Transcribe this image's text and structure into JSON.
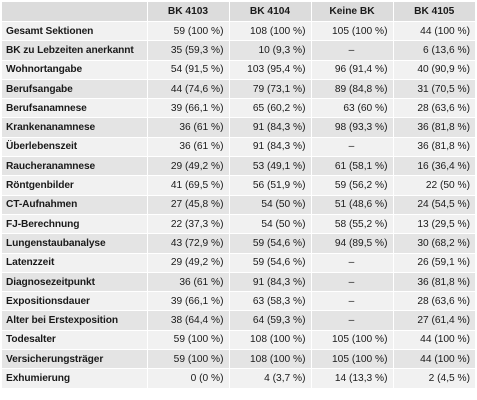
{
  "table": {
    "headers": [
      "",
      "BK 4103",
      "BK 4104",
      "Keine BK",
      "BK 4105"
    ],
    "rows": [
      {
        "label": "Gesamt Sektionen",
        "values": [
          "59 (100 %)",
          "108 (100 %)",
          "105 (100 %)",
          "44 (100 %)"
        ]
      },
      {
        "label": "BK zu Lebzeiten anerkannt",
        "values": [
          "35 (59,3 %)",
          "10 (9,3 %)",
          "–",
          "6 (13,6 %)"
        ]
      },
      {
        "label": "Wohnortangabe",
        "values": [
          "54 (91,5 %)",
          "103 (95,4 %)",
          "96 (91,4 %)",
          "40 (90,9 %)"
        ]
      },
      {
        "label": "Berufsangabe",
        "values": [
          "44 (74,6 %)",
          "79 (73,1 %)",
          "89 (84,8 %)",
          "31 (70,5 %)"
        ]
      },
      {
        "label": "Berufsanamnese",
        "values": [
          "39 (66,1 %)",
          "65 (60,2 %)",
          "63 (60 %)",
          "28 (63,6 %)"
        ]
      },
      {
        "label": "Krankenanamnese",
        "values": [
          "36 (61 %)",
          "91 (84,3 %)",
          "98 (93,3 %)",
          "36 (81,8 %)"
        ]
      },
      {
        "label": "Überlebenszeit",
        "values": [
          "36 (61 %)",
          "91 (84,3 %)",
          "–",
          "36 (81,8 %)"
        ]
      },
      {
        "label": "Raucheranamnese",
        "values": [
          "29 (49,2 %)",
          "53 (49,1 %)",
          "61 (58,1 %)",
          "16 (36,4 %)"
        ]
      },
      {
        "label": "Röntgenbilder",
        "values": [
          "41 (69,5 %)",
          "56 (51,9 %)",
          "59 (56,2 %)",
          "22 (50 %)"
        ]
      },
      {
        "label": "CT-Aufnahmen",
        "values": [
          "27 (45,8 %)",
          "54 (50 %)",
          "51 (48,6 %)",
          "24 (54,5 %)"
        ]
      },
      {
        "label": "FJ-Berechnung",
        "values": [
          "22 (37,3 %)",
          "54 (50 %)",
          "58 (55,2 %)",
          "13 (29,5 %)"
        ]
      },
      {
        "label": "Lungenstaubanalyse",
        "values": [
          "43 (72,9 %)",
          "59 (54,6 %)",
          "94 (89,5 %)",
          "30 (68,2 %)"
        ]
      },
      {
        "label": "Latenzzeit",
        "values": [
          "29 (49,2 %)",
          "59 (54,6 %)",
          "–",
          "26 (59,1 %)"
        ]
      },
      {
        "label": "Diagnosezeitpunkt",
        "values": [
          "36 (61 %)",
          "91 (84,3 %)",
          "–",
          "36 (81,8 %)"
        ]
      },
      {
        "label": "Expositionsdauer",
        "values": [
          "39 (66,1 %)",
          "63 (58,3 %)",
          "–",
          "28 (63,6 %)"
        ]
      },
      {
        "label": "Alter bei Erstexposition",
        "values": [
          "38 (64,4 %)",
          "64 (59,3 %)",
          "–",
          "27 (61,4 %)"
        ]
      },
      {
        "label": "Todesalter",
        "values": [
          "59 (100 %)",
          "108 (100 %)",
          "105 (100 %)",
          "44 (100 %)"
        ]
      },
      {
        "label": "Versicherungsträger",
        "values": [
          "59 (100 %)",
          "108 (100 %)",
          "105 (100 %)",
          "44 (100 %)"
        ]
      },
      {
        "label": "Exhumierung",
        "values": [
          "0 (0 %)",
          "4 (3,7 %)",
          "14 (13,3 %)",
          "2 (4,5 %)"
        ]
      }
    ]
  }
}
